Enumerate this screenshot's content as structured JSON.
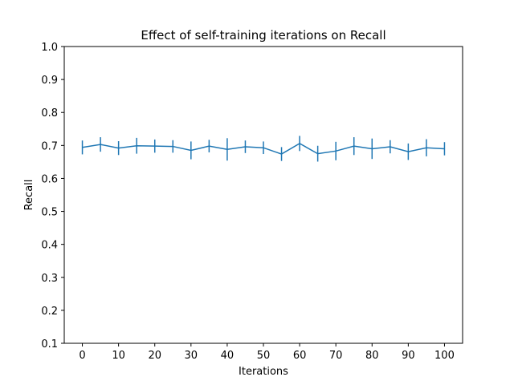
{
  "chart_data": {
    "type": "line",
    "title": "Effect of self-training iterations on Recall",
    "xlabel": "Iterations",
    "ylabel": "Recall",
    "xlim": [
      -5,
      105
    ],
    "ylim": [
      0.1,
      1.0
    ],
    "xticks": [
      0,
      10,
      20,
      30,
      40,
      50,
      60,
      70,
      80,
      90,
      100
    ],
    "xtick_labels": [
      "0",
      "10",
      "20",
      "30",
      "40",
      "50",
      "60",
      "70",
      "80",
      "90",
      "100"
    ],
    "yticks": [
      0.1,
      0.2,
      0.3,
      0.4,
      0.5,
      0.6,
      0.7,
      0.8,
      0.9,
      1.0
    ],
    "ytick_labels": [
      "0.1",
      "0.2",
      "0.3",
      "0.4",
      "0.5",
      "0.6",
      "0.7",
      "0.8",
      "0.9",
      "1.0"
    ],
    "grid": false,
    "series": [
      {
        "color": "#1f77b4",
        "x": [
          0,
          5,
          10,
          15,
          20,
          25,
          30,
          35,
          40,
          45,
          50,
          55,
          60,
          65,
          70,
          75,
          80,
          85,
          90,
          95,
          100
        ],
        "y": [
          0.694,
          0.703,
          0.692,
          0.699,
          0.698,
          0.697,
          0.685,
          0.698,
          0.688,
          0.696,
          0.693,
          0.674,
          0.706,
          0.675,
          0.683,
          0.698,
          0.69,
          0.696,
          0.681,
          0.693,
          0.69
        ],
        "yerr": [
          0.021,
          0.022,
          0.021,
          0.024,
          0.02,
          0.019,
          0.027,
          0.019,
          0.034,
          0.019,
          0.019,
          0.021,
          0.023,
          0.024,
          0.028,
          0.027,
          0.031,
          0.02,
          0.025,
          0.026,
          0.02
        ]
      }
    ]
  }
}
